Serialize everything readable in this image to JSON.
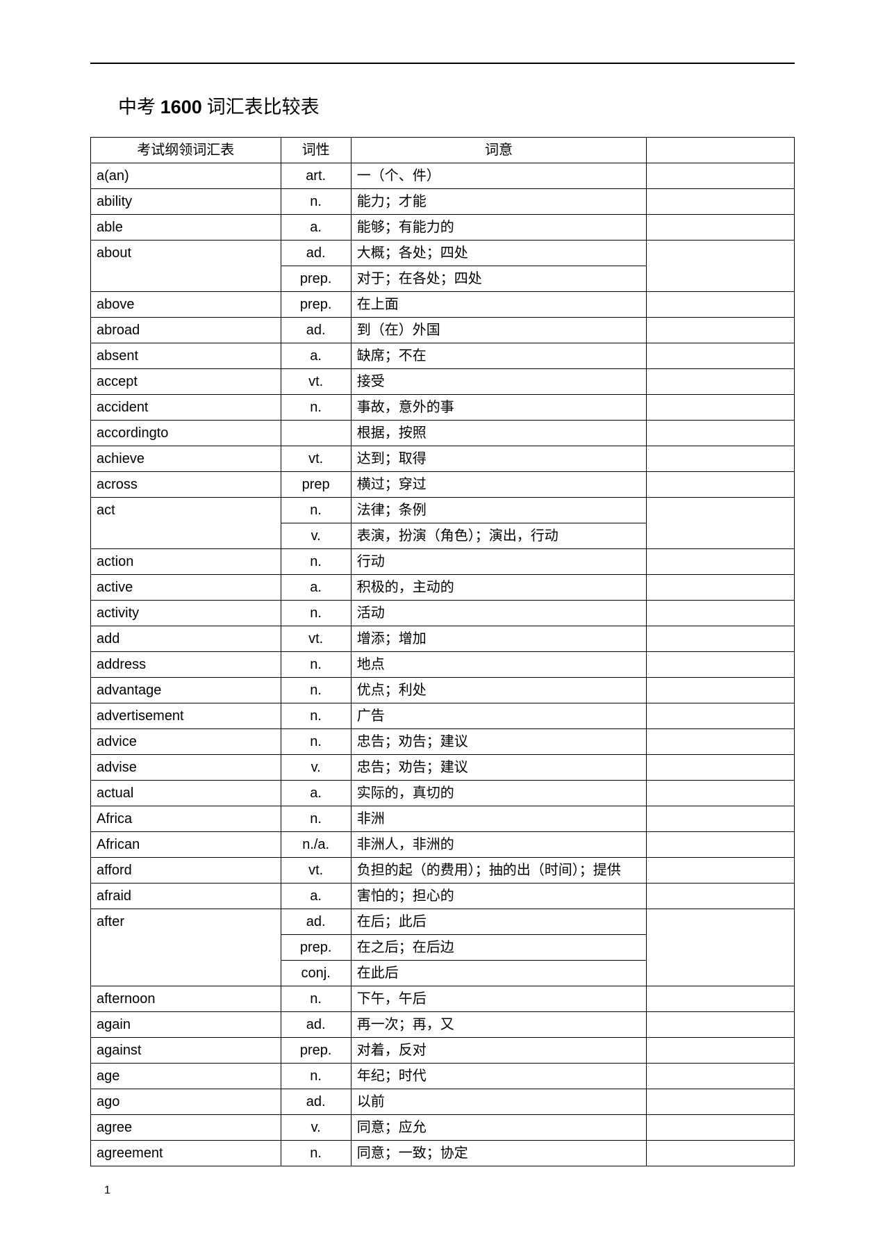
{
  "title_prefix": "中考 ",
  "title_bold": "1600",
  "title_suffix": " 词汇表比较表",
  "headers": {
    "word": "考试纲领词汇表",
    "pos": "词性",
    "meaning": "词意",
    "empty": ""
  },
  "page_number": "1",
  "rows": [
    {
      "word": "a(an)",
      "pos": [
        "art."
      ],
      "mean": [
        "一（个、件）"
      ]
    },
    {
      "word": "ability",
      "pos": [
        "n."
      ],
      "mean": [
        "能力；才能"
      ]
    },
    {
      "word": "able",
      "pos": [
        "a."
      ],
      "mean": [
        "能够；有能力的"
      ]
    },
    {
      "word": "about",
      "pos": [
        "ad.",
        "prep."
      ],
      "mean": [
        "大概；各处；四处",
        "对于；在各处；四处"
      ]
    },
    {
      "word": "above",
      "pos": [
        "prep."
      ],
      "mean": [
        "在上面"
      ]
    },
    {
      "word": "abroad",
      "pos": [
        "ad."
      ],
      "mean": [
        "到（在）外国"
      ]
    },
    {
      "word": "absent",
      "pos": [
        "a."
      ],
      "mean": [
        "缺席；不在"
      ]
    },
    {
      "word": "accept",
      "pos": [
        "vt."
      ],
      "mean": [
        "接受"
      ]
    },
    {
      "word": "accident",
      "pos": [
        "n."
      ],
      "mean": [
        "事故，意外的事"
      ]
    },
    {
      "word": "accordingto",
      "pos": [
        ""
      ],
      "mean": [
        "根据，按照"
      ]
    },
    {
      "word": "achieve",
      "pos": [
        "vt."
      ],
      "mean": [
        "达到；取得"
      ]
    },
    {
      "word": "across",
      "pos": [
        "prep"
      ],
      "mean": [
        "横过；穿过"
      ]
    },
    {
      "word": "act",
      "pos": [
        "n.",
        "v."
      ],
      "mean": [
        "法律；条例",
        "表演，扮演（角色）；演出，行动"
      ]
    },
    {
      "word": "action",
      "pos": [
        "n."
      ],
      "mean": [
        "行动"
      ]
    },
    {
      "word": "active",
      "pos": [
        "a."
      ],
      "mean": [
        "积极的，主动的"
      ]
    },
    {
      "word": "activity",
      "pos": [
        "n."
      ],
      "mean": [
        "活动"
      ]
    },
    {
      "word": "add",
      "pos": [
        "vt."
      ],
      "mean": [
        "增添；增加"
      ]
    },
    {
      "word": "address",
      "pos": [
        "n."
      ],
      "mean": [
        "地点"
      ]
    },
    {
      "word": "advantage",
      "pos": [
        "n."
      ],
      "mean": [
        "优点；利处"
      ]
    },
    {
      "word": "advertisement",
      "pos": [
        "n."
      ],
      "mean": [
        "广告"
      ]
    },
    {
      "word": "advice",
      "pos": [
        "n."
      ],
      "mean": [
        "忠告；劝告；建议"
      ]
    },
    {
      "word": "advise",
      "pos": [
        "v."
      ],
      "mean": [
        "忠告；劝告；建议"
      ]
    },
    {
      "word": "actual",
      "pos": [
        "a."
      ],
      "mean": [
        "实际的，真切的"
      ]
    },
    {
      "word": "Africa",
      "pos": [
        "n."
      ],
      "mean": [
        "非洲"
      ]
    },
    {
      "word": "African",
      "pos": [
        "n./a."
      ],
      "mean": [
        "非洲人，非洲的"
      ]
    },
    {
      "word": "afford",
      "pos": [
        "vt."
      ],
      "mean": [
        "负担的起（的费用）；抽的出（时间）；提供"
      ]
    },
    {
      "word": "afraid",
      "pos": [
        "a."
      ],
      "mean": [
        "害怕的；担心的"
      ]
    },
    {
      "word": "after",
      "pos": [
        "ad.",
        "prep.",
        "conj."
      ],
      "mean": [
        "在后；此后",
        "在之后；在后边",
        "在此后"
      ]
    },
    {
      "word": "afternoon",
      "pos": [
        "n."
      ],
      "mean": [
        "下午，午后"
      ]
    },
    {
      "word": "again",
      "pos": [
        "ad."
      ],
      "mean": [
        "再一次；再，又"
      ]
    },
    {
      "word": "against",
      "pos": [
        "prep."
      ],
      "mean": [
        "对着，反对"
      ]
    },
    {
      "word": "age",
      "pos": [
        "n."
      ],
      "mean": [
        "年纪；时代"
      ]
    },
    {
      "word": "ago",
      "pos": [
        "ad."
      ],
      "mean": [
        "以前"
      ]
    },
    {
      "word": "agree",
      "pos": [
        "v."
      ],
      "mean": [
        "同意；应允"
      ]
    },
    {
      "word": "agreement",
      "pos": [
        "n."
      ],
      "mean": [
        "同意；一致；协定"
      ]
    }
  ]
}
